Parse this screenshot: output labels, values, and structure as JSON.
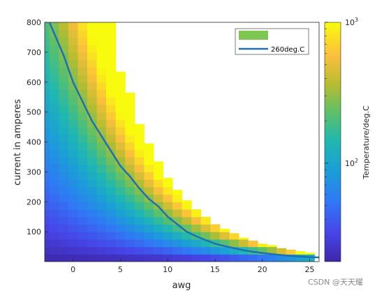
{
  "chart_data": {
    "type": "heatmap",
    "title": "",
    "xlabel": "awg",
    "ylabel": "current in amperes",
    "xlim": [
      -3,
      26
    ],
    "ylim": [
      0,
      800
    ],
    "x_ticks": [
      0,
      5,
      10,
      15,
      20,
      25
    ],
    "y_ticks": [
      100,
      200,
      300,
      400,
      500,
      600,
      700,
      800
    ],
    "grid": false,
    "legend_position": "top-right",
    "colorbar": {
      "label": "Temperature/deg.C",
      "scale": "log",
      "range": [
        20,
        1000
      ],
      "ticks": [
        {
          "value": 100,
          "base": "10",
          "exp": "2"
        },
        {
          "value": 1000,
          "base": "10",
          "exp": "3"
        }
      ],
      "colormap": "parula"
    },
    "heatmap_columns": {
      "awg": [
        -3,
        -2,
        -1,
        0,
        1,
        2,
        3,
        4,
        5,
        6,
        7,
        8,
        9,
        10,
        11,
        12,
        13,
        14,
        15,
        16,
        17,
        18,
        19,
        20,
        21,
        22,
        23,
        24,
        25
      ],
      "filled_up_to_current": [
        800,
        800,
        800,
        800,
        800,
        800,
        800,
        800,
        635,
        565,
        460,
        395,
        335,
        280,
        240,
        205,
        175,
        150,
        125,
        110,
        95,
        80,
        70,
        60,
        55,
        45,
        40,
        35,
        30
      ]
    },
    "series": [
      {
        "name": "",
        "type": "patch",
        "color": "#7ec852"
      },
      {
        "name": "260deg.C",
        "type": "line",
        "color": "#1f6fb4",
        "x": [
          -2.5,
          -1,
          0,
          1,
          2,
          3,
          4,
          5,
          6,
          7,
          8,
          9,
          10,
          11,
          12,
          13,
          14,
          15,
          16,
          17,
          18,
          19,
          20,
          21,
          22,
          23,
          24,
          25,
          26
        ],
        "y": [
          800,
          690,
          600,
          535,
          470,
          420,
          370,
          320,
          285,
          245,
          210,
          185,
          150,
          125,
          100,
          85,
          72,
          60,
          52,
          45,
          38,
          33,
          29,
          25,
          22,
          19,
          17,
          15,
          14
        ]
      }
    ]
  },
  "watermark": "CSDN @天天耀"
}
